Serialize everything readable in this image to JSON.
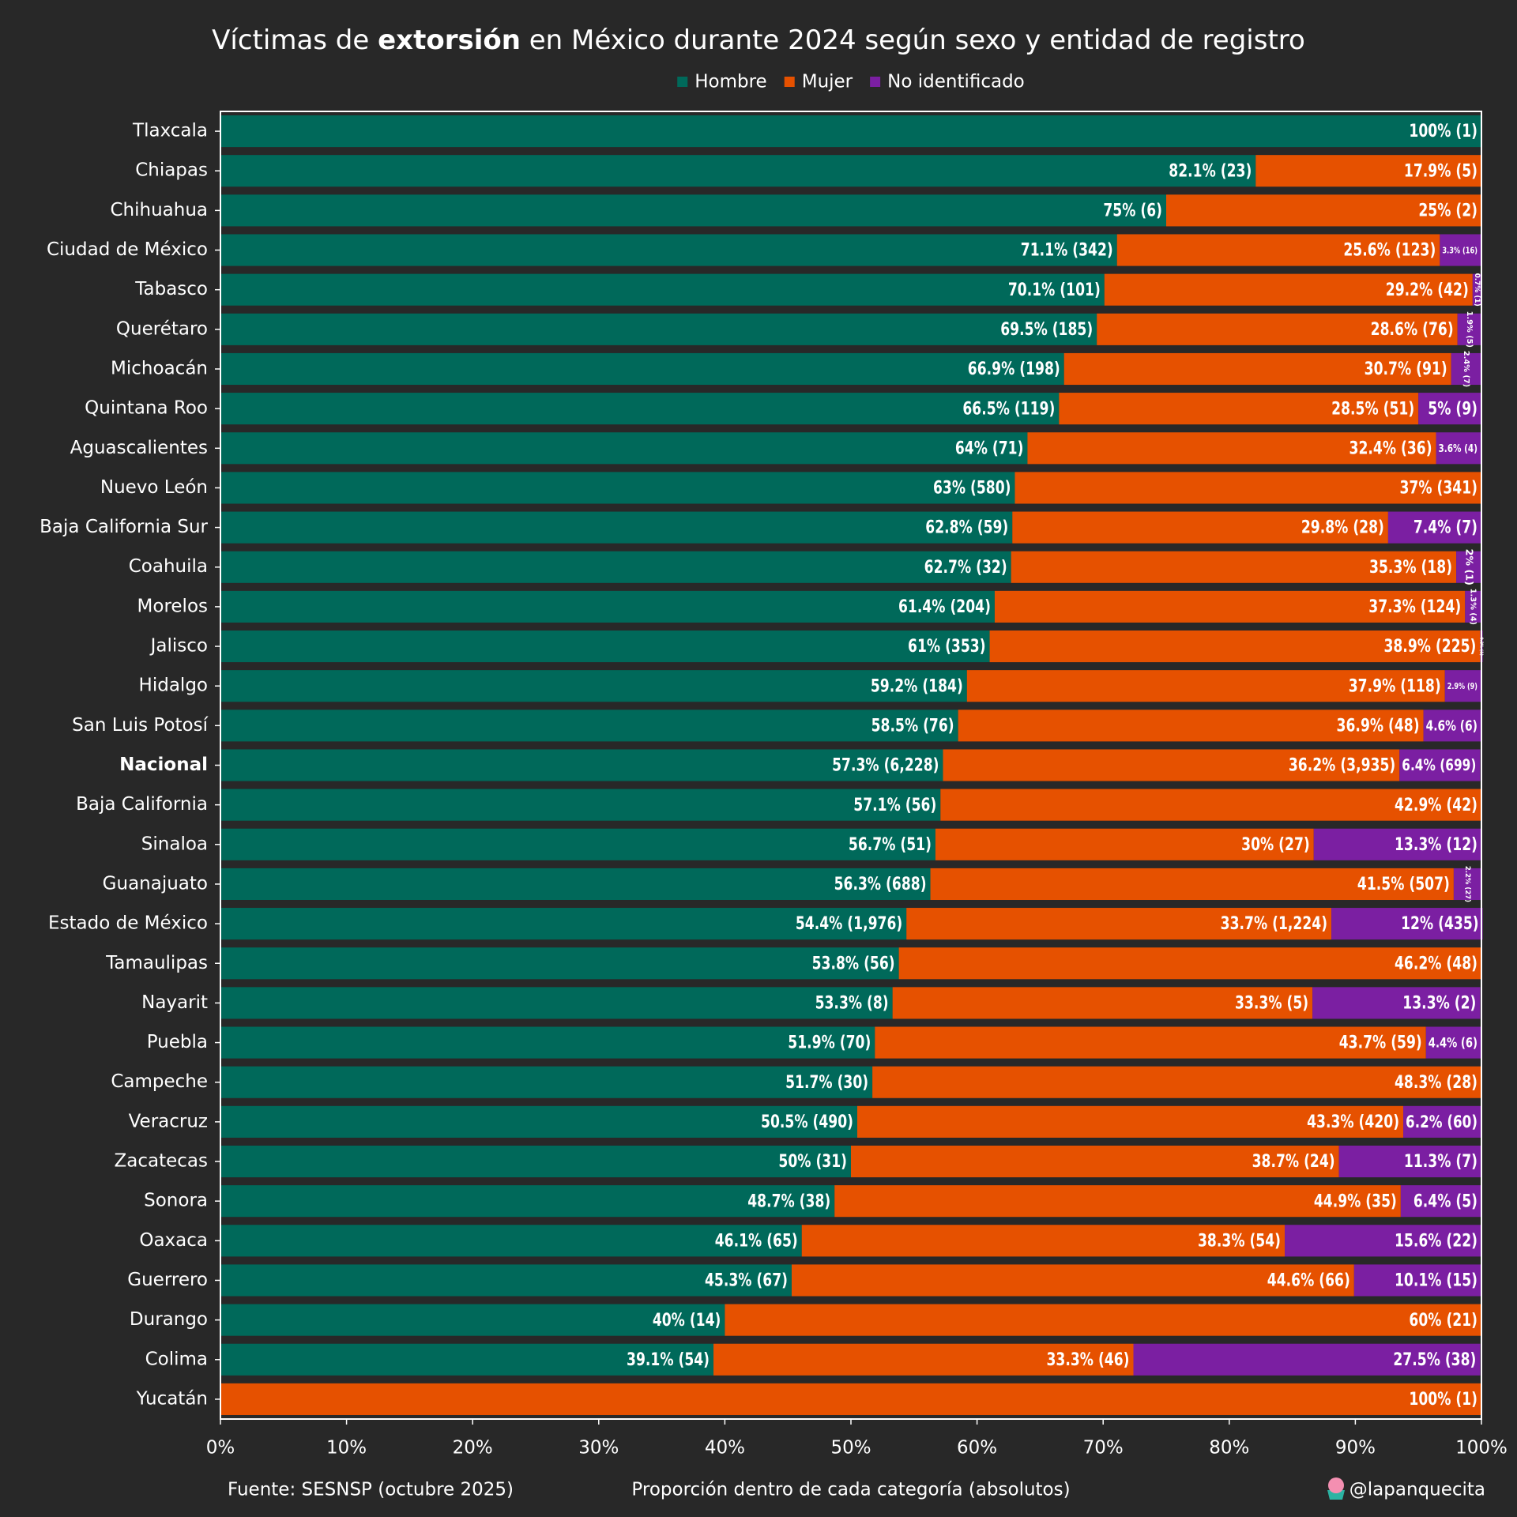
{
  "chart_data": {
    "type": "stacked_barh",
    "title": [
      "Víctimas de ",
      "extorsión",
      " en México durante 2024 según sexo y entidad de registro"
    ],
    "x_label": "Proporción dentro de cada categoría (absolutos)",
    "source": "Fuente: SESNSP (octubre 2025)",
    "credit": "@lapanquecita",
    "highlight_index": 16,
    "xlim": [
      0,
      100
    ],
    "xticks": [
      {
        "value": 0,
        "label": "0%"
      },
      {
        "value": 10,
        "label": "10%"
      },
      {
        "value": 20,
        "label": "20%"
      },
      {
        "value": 30,
        "label": "30%"
      },
      {
        "value": 40,
        "label": "40%"
      },
      {
        "value": 50,
        "label": "50%"
      },
      {
        "value": 60,
        "label": "60%"
      },
      {
        "value": 70,
        "label": "70%"
      },
      {
        "value": 80,
        "label": "80%"
      },
      {
        "value": 90,
        "label": "90%"
      },
      {
        "value": 100,
        "label": "100%"
      }
    ],
    "categories": [
      "Tlaxcala",
      "Chiapas",
      "Chihuahua",
      "Ciudad de México",
      "Tabasco",
      "Querétaro",
      "Michoacán",
      "Quintana Roo",
      "Aguascalientes",
      "Nuevo León",
      "Baja California Sur",
      "Coahuila",
      "Morelos",
      "Jalisco",
      "Hidalgo",
      "San Luis Potosí",
      "Nacional",
      "Baja California",
      "Sinaloa",
      "Guanajuato",
      "Estado de México",
      "Tamaulipas",
      "Nayarit",
      "Puebla",
      "Campeche",
      "Veracruz",
      "Zacatecas",
      "Sonora",
      "Oaxaca",
      "Guerrero",
      "Durango",
      "Colima",
      "Yucatán"
    ],
    "series": [
      {
        "name": "Hombre",
        "color": "#00695a",
        "values": [
          100,
          82.1,
          75,
          71.1,
          70.1,
          69.5,
          66.9,
          66.5,
          64,
          63,
          62.8,
          62.7,
          61.4,
          61,
          59.2,
          58.5,
          57.3,
          57.1,
          56.7,
          56.3,
          54.4,
          53.8,
          53.3,
          51.9,
          51.7,
          50.5,
          50,
          48.7,
          46.1,
          45.3,
          40,
          39.1,
          0
        ],
        "value_labels": [
          "100% (1)",
          "82.1% (23)",
          "75% (6)",
          "71.1% (342)",
          "70.1% (101)",
          "69.5% (185)",
          "66.9% (198)",
          "66.5% (119)",
          "64% (71)",
          "63% (580)",
          "62.8% (59)",
          "62.7% (32)",
          "61.4% (204)",
          "61% (353)",
          "59.2% (184)",
          "58.5% (76)",
          "57.3% (6,228)",
          "57.1% (56)",
          "56.7% (51)",
          "56.3% (688)",
          "54.4% (1,976)",
          "53.8% (56)",
          "53.3% (8)",
          "51.9% (70)",
          "51.7% (30)",
          "50.5% (490)",
          "50% (31)",
          "48.7% (38)",
          "46.1% (65)",
          "45.3% (67)",
          "40% (14)",
          "39.1% (54)",
          null
        ]
      },
      {
        "name": "Mujer",
        "color": "#e65100",
        "values": [
          0,
          17.9,
          25,
          25.6,
          29.2,
          28.6,
          30.7,
          28.5,
          32.4,
          37,
          29.8,
          35.3,
          37.3,
          38.9,
          37.9,
          36.9,
          36.2,
          42.9,
          30,
          41.5,
          33.7,
          46.2,
          33.3,
          43.7,
          48.3,
          43.3,
          38.7,
          44.9,
          38.3,
          44.6,
          60,
          33.3,
          100
        ],
        "value_labels": [
          null,
          "17.9% (5)",
          "25% (2)",
          "25.6% (123)",
          "29.2% (42)",
          "28.6% (76)",
          "30.7% (91)",
          "28.5% (51)",
          "32.4% (36)",
          "37% (341)",
          "29.8% (28)",
          "35.3% (18)",
          "37.3% (124)",
          "38.9% (225)",
          "37.9% (118)",
          "36.9% (48)",
          "36.2% (3,935)",
          "42.9% (42)",
          "30% (27)",
          "41.5% (507)",
          "33.7% (1,224)",
          "46.2% (48)",
          "33.3% (5)",
          "43.7% (59)",
          "48.3% (28)",
          "43.3% (420)",
          "38.7% (24)",
          "44.9% (35)",
          "38.3% (54)",
          "44.6% (66)",
          "60% (21)",
          "33.3% (46)",
          "100% (1)"
        ]
      },
      {
        "name": "No identificado",
        "color": "#7b1fa2",
        "values": [
          0,
          0,
          0,
          3.3,
          0.7,
          1.9,
          2.4,
          5,
          3.6,
          0,
          7.4,
          2,
          1.3,
          0.2,
          2.9,
          4.6,
          6.4,
          0,
          13.3,
          2.2,
          12,
          0,
          13.3,
          4.4,
          0,
          6.2,
          11.3,
          6.4,
          15.6,
          10.1,
          0,
          27.5,
          0
        ],
        "value_labels": [
          null,
          null,
          null,
          "3.3% (16)",
          "0.7% (1)",
          "1.9% (5)",
          "2.4% (7)",
          "5% (9)",
          "3.6% (4)",
          null,
          "7.4% (7)",
          "2% (1)",
          "1.3% (4)",
          "0.2% (1)",
          "2.9% (9)",
          "4.6% (6)",
          "6.4% (699)",
          null,
          "13.3% (12)",
          "2.2% (27)",
          "12% (435)",
          null,
          "13.3% (2)",
          "4.4% (6)",
          null,
          "6.2% (60)",
          "11.3% (7)",
          "6.4% (5)",
          "15.6% (22)",
          "10.1% (15)",
          null,
          "27.5% (38)",
          null
        ]
      }
    ]
  }
}
